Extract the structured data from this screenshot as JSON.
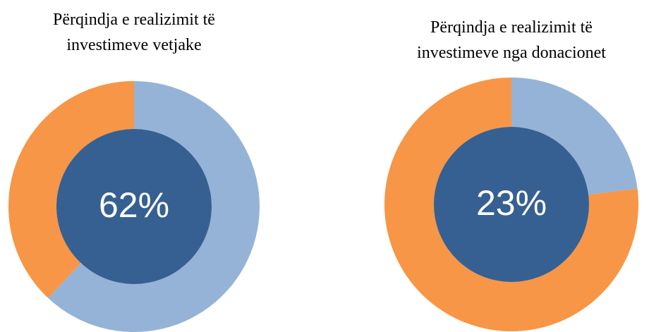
{
  "chart_data": [
    {
      "type": "donut",
      "title": [
        "Përqindja e realizimit të",
        "investimeve vetjake"
      ],
      "values": [
        62,
        38
      ],
      "value_labels": [
        "62%",
        null
      ],
      "colors": [
        "#95b3d7",
        "#f79646"
      ],
      "center_color": "#366092"
    },
    {
      "type": "donut",
      "title": [
        "Përqindja e realizimit të",
        "investimeve nga donacionet"
      ],
      "values": [
        23,
        77
      ],
      "value_labels": [
        "23%",
        null
      ],
      "colors": [
        "#95b3d7",
        "#f79646"
      ],
      "center_color": "#366092"
    }
  ]
}
